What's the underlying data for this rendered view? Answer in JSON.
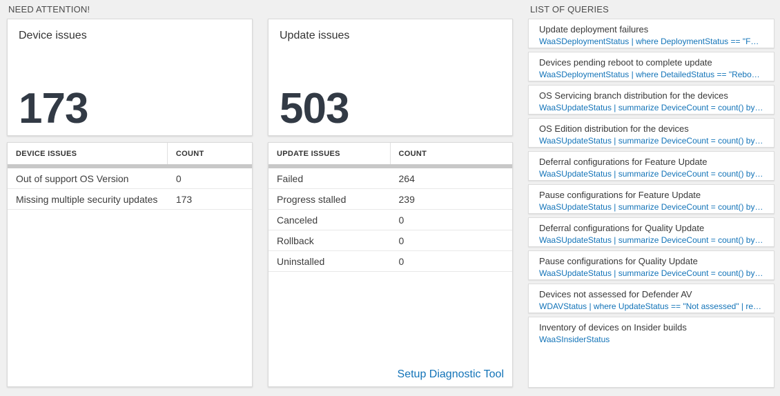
{
  "colors": {
    "page_background": "#f0f0f0",
    "link_blue": "#1273b8",
    "big_number_color": "#323a45",
    "thick_bar_gray": "#c8c8c8"
  },
  "need_attention": {
    "header": "NEED ATTENTION!",
    "device_card": {
      "title": "Device issues",
      "big_number": "173",
      "table": {
        "headers": [
          "DEVICE ISSUES",
          "COUNT"
        ],
        "rows": [
          {
            "label": "Out of support OS Version",
            "count": "0"
          },
          {
            "label": "Missing multiple security updates",
            "count": "173"
          }
        ]
      }
    },
    "update_card": {
      "title": "Update issues",
      "big_number": "503",
      "table": {
        "headers": [
          "UPDATE ISSUES",
          "COUNT"
        ],
        "rows": [
          {
            "label": "Failed",
            "count": "264"
          },
          {
            "label": "Progress stalled",
            "count": "239"
          },
          {
            "label": "Canceled",
            "count": "0"
          },
          {
            "label": "Rollback",
            "count": "0"
          },
          {
            "label": "Uninstalled",
            "count": "0"
          }
        ]
      },
      "footer_link": "Setup Diagnostic Tool"
    }
  },
  "queries_panel": {
    "header": "LIST OF QUERIES",
    "items": [
      {
        "title": "Update deployment failures",
        "query": "WaaSDeploymentStatus | where DeploymentStatus == \"Failed\" |..."
      },
      {
        "title": "Devices pending reboot to complete update",
        "query": "WaaSDeploymentStatus | where DetailedStatus == \"Reboot pend..."
      },
      {
        "title": "OS Servicing branch distribution for the devices",
        "query": "WaaSUpdateStatus | summarize DeviceCount = count() by OSSer..."
      },
      {
        "title": "OS Edition distribution for the devices",
        "query": "WaaSUpdateStatus | summarize DeviceCount = count() by OSEdit..."
      },
      {
        "title": "Deferral configurations for Feature Update",
        "query": "WaaSUpdateStatus | summarize DeviceCount = count() by Featur..."
      },
      {
        "title": "Pause configurations for Feature Update",
        "query": "WaaSUpdateStatus | summarize DeviceCount = count() by Featur..."
      },
      {
        "title": "Deferral configurations for Quality Update",
        "query": "WaaSUpdateStatus | summarize DeviceCount = count() by Qualit..."
      },
      {
        "title": "Pause configurations for Quality Update",
        "query": "WaaSUpdateStatus | summarize DeviceCount = count() by Qualit..."
      },
      {
        "title": "Devices not assessed for Defender AV",
        "query": "WDAVStatus | where UpdateStatus == \"Not assessed\" | render ta..."
      },
      {
        "title": "Inventory of devices on Insider builds",
        "query": "WaaSInsiderStatus"
      }
    ]
  }
}
